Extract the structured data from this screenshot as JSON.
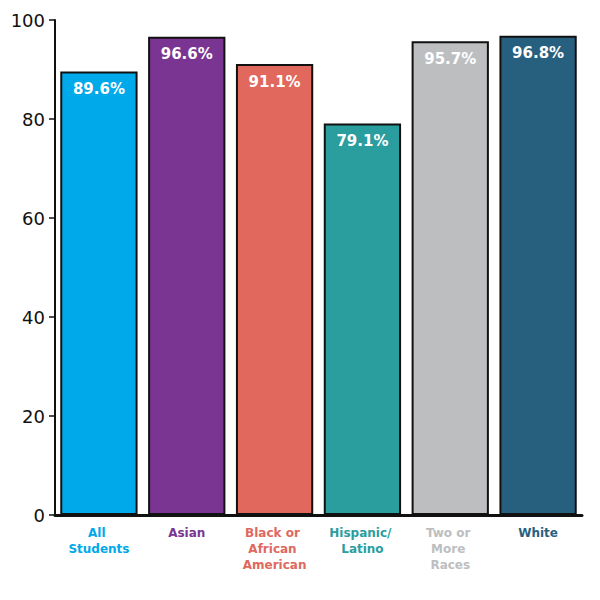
{
  "chart_data": {
    "type": "bar",
    "categories": [
      "All Students",
      "Asian",
      "Black or African American",
      "Hispanic/ Latino",
      "Two or More Races",
      "White"
    ],
    "values": [
      89.6,
      96.6,
      91.1,
      79.1,
      95.7,
      96.8
    ],
    "value_labels": [
      "89.6%",
      "96.6%",
      "91.1%",
      "79.1%",
      "95.7%",
      "96.8%"
    ],
    "colors": [
      "#00a9e9",
      "#7a3593",
      "#e0685d",
      "#2a9d9f",
      "#bdbec0",
      "#27607f"
    ],
    "ylim": [
      0,
      100
    ],
    "yticks": [
      0,
      20,
      40,
      60,
      80,
      100
    ],
    "grid": false,
    "data_labels": true
  }
}
